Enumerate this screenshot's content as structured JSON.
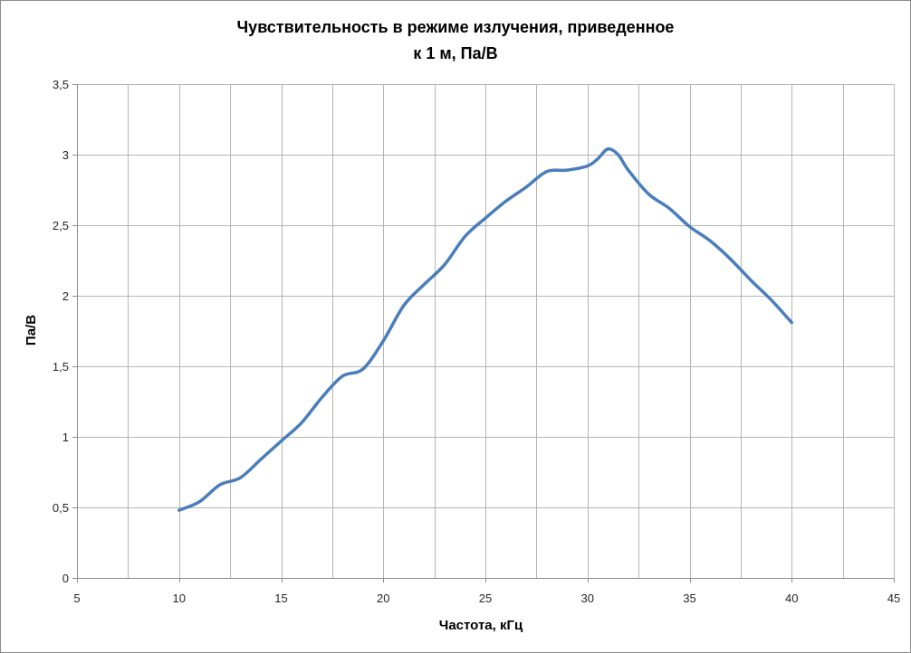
{
  "chart_data": {
    "type": "line",
    "title_lines": [
      "Чувствительность в режиме излучения, приведенное",
      "к 1 м, Па/В"
    ],
    "xlabel": "Частота, кГц",
    "ylabel": "Па/В",
    "xlim": [
      5,
      45
    ],
    "ylim": [
      0,
      3.5
    ],
    "x_major_step": 5,
    "x_minor_step": 2.5,
    "y_step": 0.5,
    "x_ticks": [
      "5",
      "10",
      "15",
      "20",
      "25",
      "30",
      "35",
      "40",
      "45"
    ],
    "y_ticks": [
      "0",
      "0,5",
      "1",
      "1,5",
      "2",
      "2,5",
      "3",
      "3,5"
    ],
    "grid": true,
    "smooth": true,
    "series": [
      {
        "color": "#4a7ebb",
        "x": [
          10,
          11,
          12,
          13,
          14,
          15,
          16,
          17,
          18,
          19,
          20,
          21,
          22,
          23,
          24,
          25,
          26,
          27,
          28,
          29,
          30,
          30.5,
          31,
          31.5,
          32,
          33,
          34,
          35,
          36,
          37,
          38,
          39,
          40
        ],
        "y": [
          0.48,
          0.54,
          0.66,
          0.71,
          0.84,
          0.97,
          1.1,
          1.28,
          1.43,
          1.48,
          1.68,
          1.93,
          2.08,
          2.22,
          2.42,
          2.55,
          2.67,
          2.77,
          2.88,
          2.89,
          2.92,
          2.97,
          3.04,
          3.0,
          2.89,
          2.72,
          2.62,
          2.49,
          2.39,
          2.26,
          2.11,
          1.97,
          1.81
        ]
      }
    ]
  }
}
